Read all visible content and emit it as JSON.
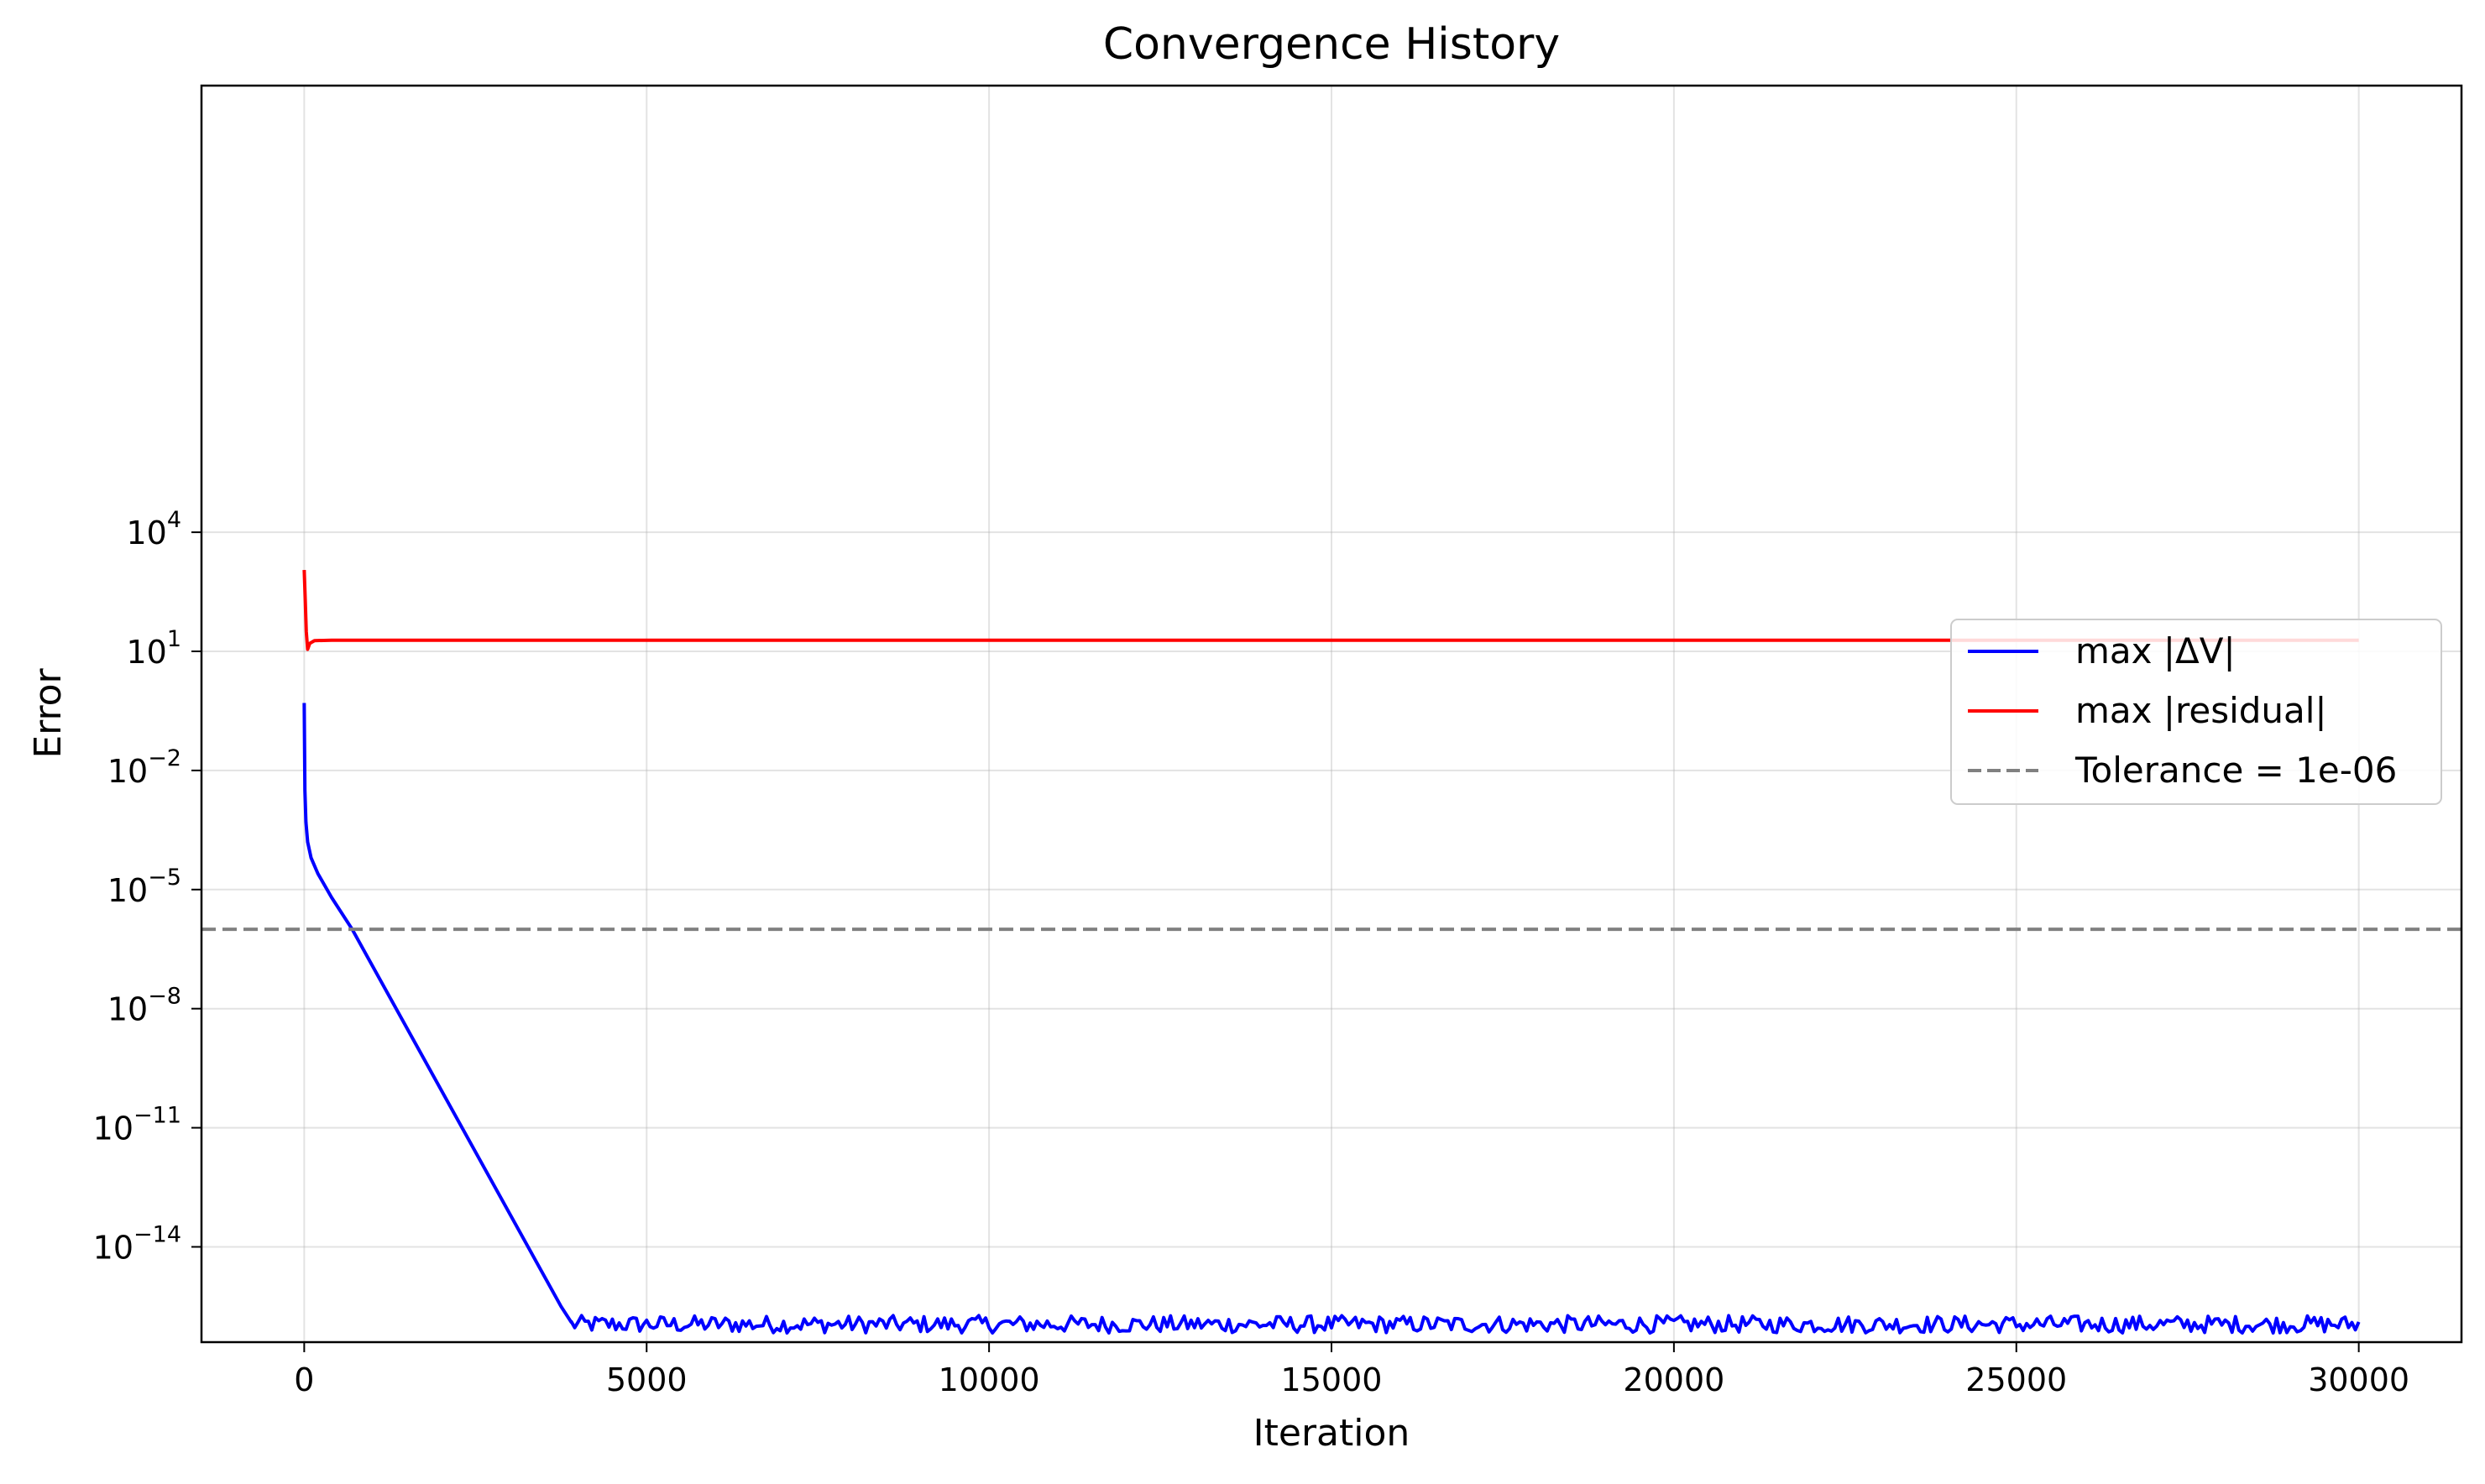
{
  "chart_data": {
    "type": "line",
    "title": "Convergence History",
    "xlabel": "Iteration",
    "ylabel": "Error",
    "xlim": [
      -1500,
      31500
    ],
    "ylim_log10": [
      -16.4,
      15.25
    ],
    "y_scale": "log",
    "grid": true,
    "legend_position": "center-right",
    "x_ticks": [
      {
        "value": 0,
        "label": "0"
      },
      {
        "value": 5000,
        "label": "5000"
      },
      {
        "value": 10000,
        "label": "10000"
      },
      {
        "value": 15000,
        "label": "15000"
      },
      {
        "value": 20000,
        "label": "20000"
      },
      {
        "value": 25000,
        "label": "25000"
      },
      {
        "value": 30000,
        "label": "30000"
      }
    ],
    "y_ticks": [
      {
        "exponent": 4,
        "base": "10",
        "exp_label": "4"
      },
      {
        "exponent": 1,
        "base": "10",
        "exp_label": "1"
      },
      {
        "exponent": -2,
        "base": "10",
        "exp_label": "−2"
      },
      {
        "exponent": -5,
        "base": "10",
        "exp_label": "−5"
      },
      {
        "exponent": -8,
        "base": "10",
        "exp_label": "−8"
      },
      {
        "exponent": -11,
        "base": "10",
        "exp_label": "−11"
      },
      {
        "exponent": -14,
        "base": "10",
        "exp_label": "−14"
      }
    ],
    "series": [
      {
        "name": "max |ΔV|",
        "color": "#0000ff",
        "style": "solid",
        "points_log10": [
          [
            0,
            -0.3
          ],
          [
            10,
            -2.5
          ],
          [
            25,
            -3.3
          ],
          [
            50,
            -3.8
          ],
          [
            100,
            -4.2
          ],
          [
            200,
            -4.6
          ],
          [
            400,
            -5.2
          ],
          [
            700,
            -6.0
          ],
          [
            3750,
            -15.5
          ],
          [
            3900,
            -15.9
          ]
        ],
        "noise_floor": {
          "x_start": 3900,
          "x_end": 30000,
          "step": 50,
          "center_log10": -15.95,
          "amplitude_log10": 0.22
        }
      },
      {
        "name": "max |residual|",
        "color": "#ff0000",
        "style": "solid",
        "points_log10": [
          [
            0,
            3.05
          ],
          [
            15,
            2.3
          ],
          [
            30,
            1.5
          ],
          [
            50,
            1.05
          ],
          [
            80,
            1.2
          ],
          [
            150,
            1.27
          ],
          [
            400,
            1.28
          ],
          [
            30000,
            1.28
          ]
        ]
      },
      {
        "name": "Tolerance = 1e-06",
        "color": "#808080",
        "style": "dashed",
        "y_log10_constant": -6
      }
    ]
  }
}
